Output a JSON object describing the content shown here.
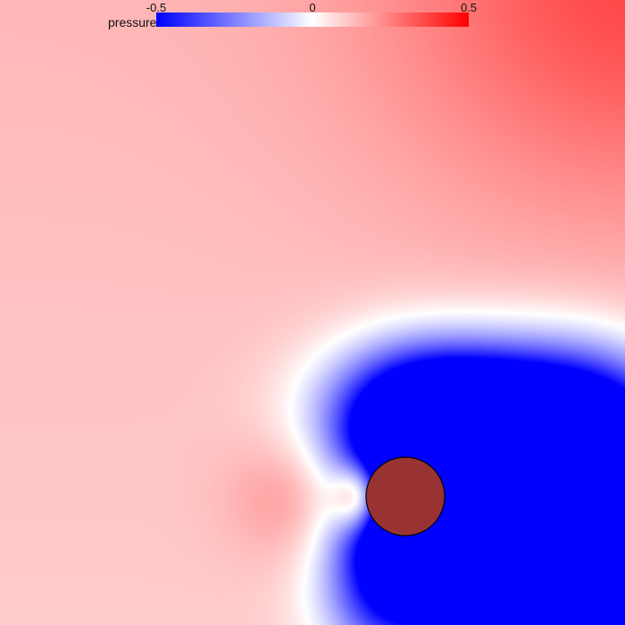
{
  "colorbar": {
    "label": "pressure",
    "ticks": [
      "-0.5",
      "0",
      "0.5"
    ],
    "min": -0.5,
    "max": 0.5,
    "colors": {
      "low": "#0000ff",
      "mid": "#ffffff",
      "high": "#ff0000"
    }
  },
  "obstacle": {
    "fill": "#993333",
    "stroke": "#000000"
  }
}
